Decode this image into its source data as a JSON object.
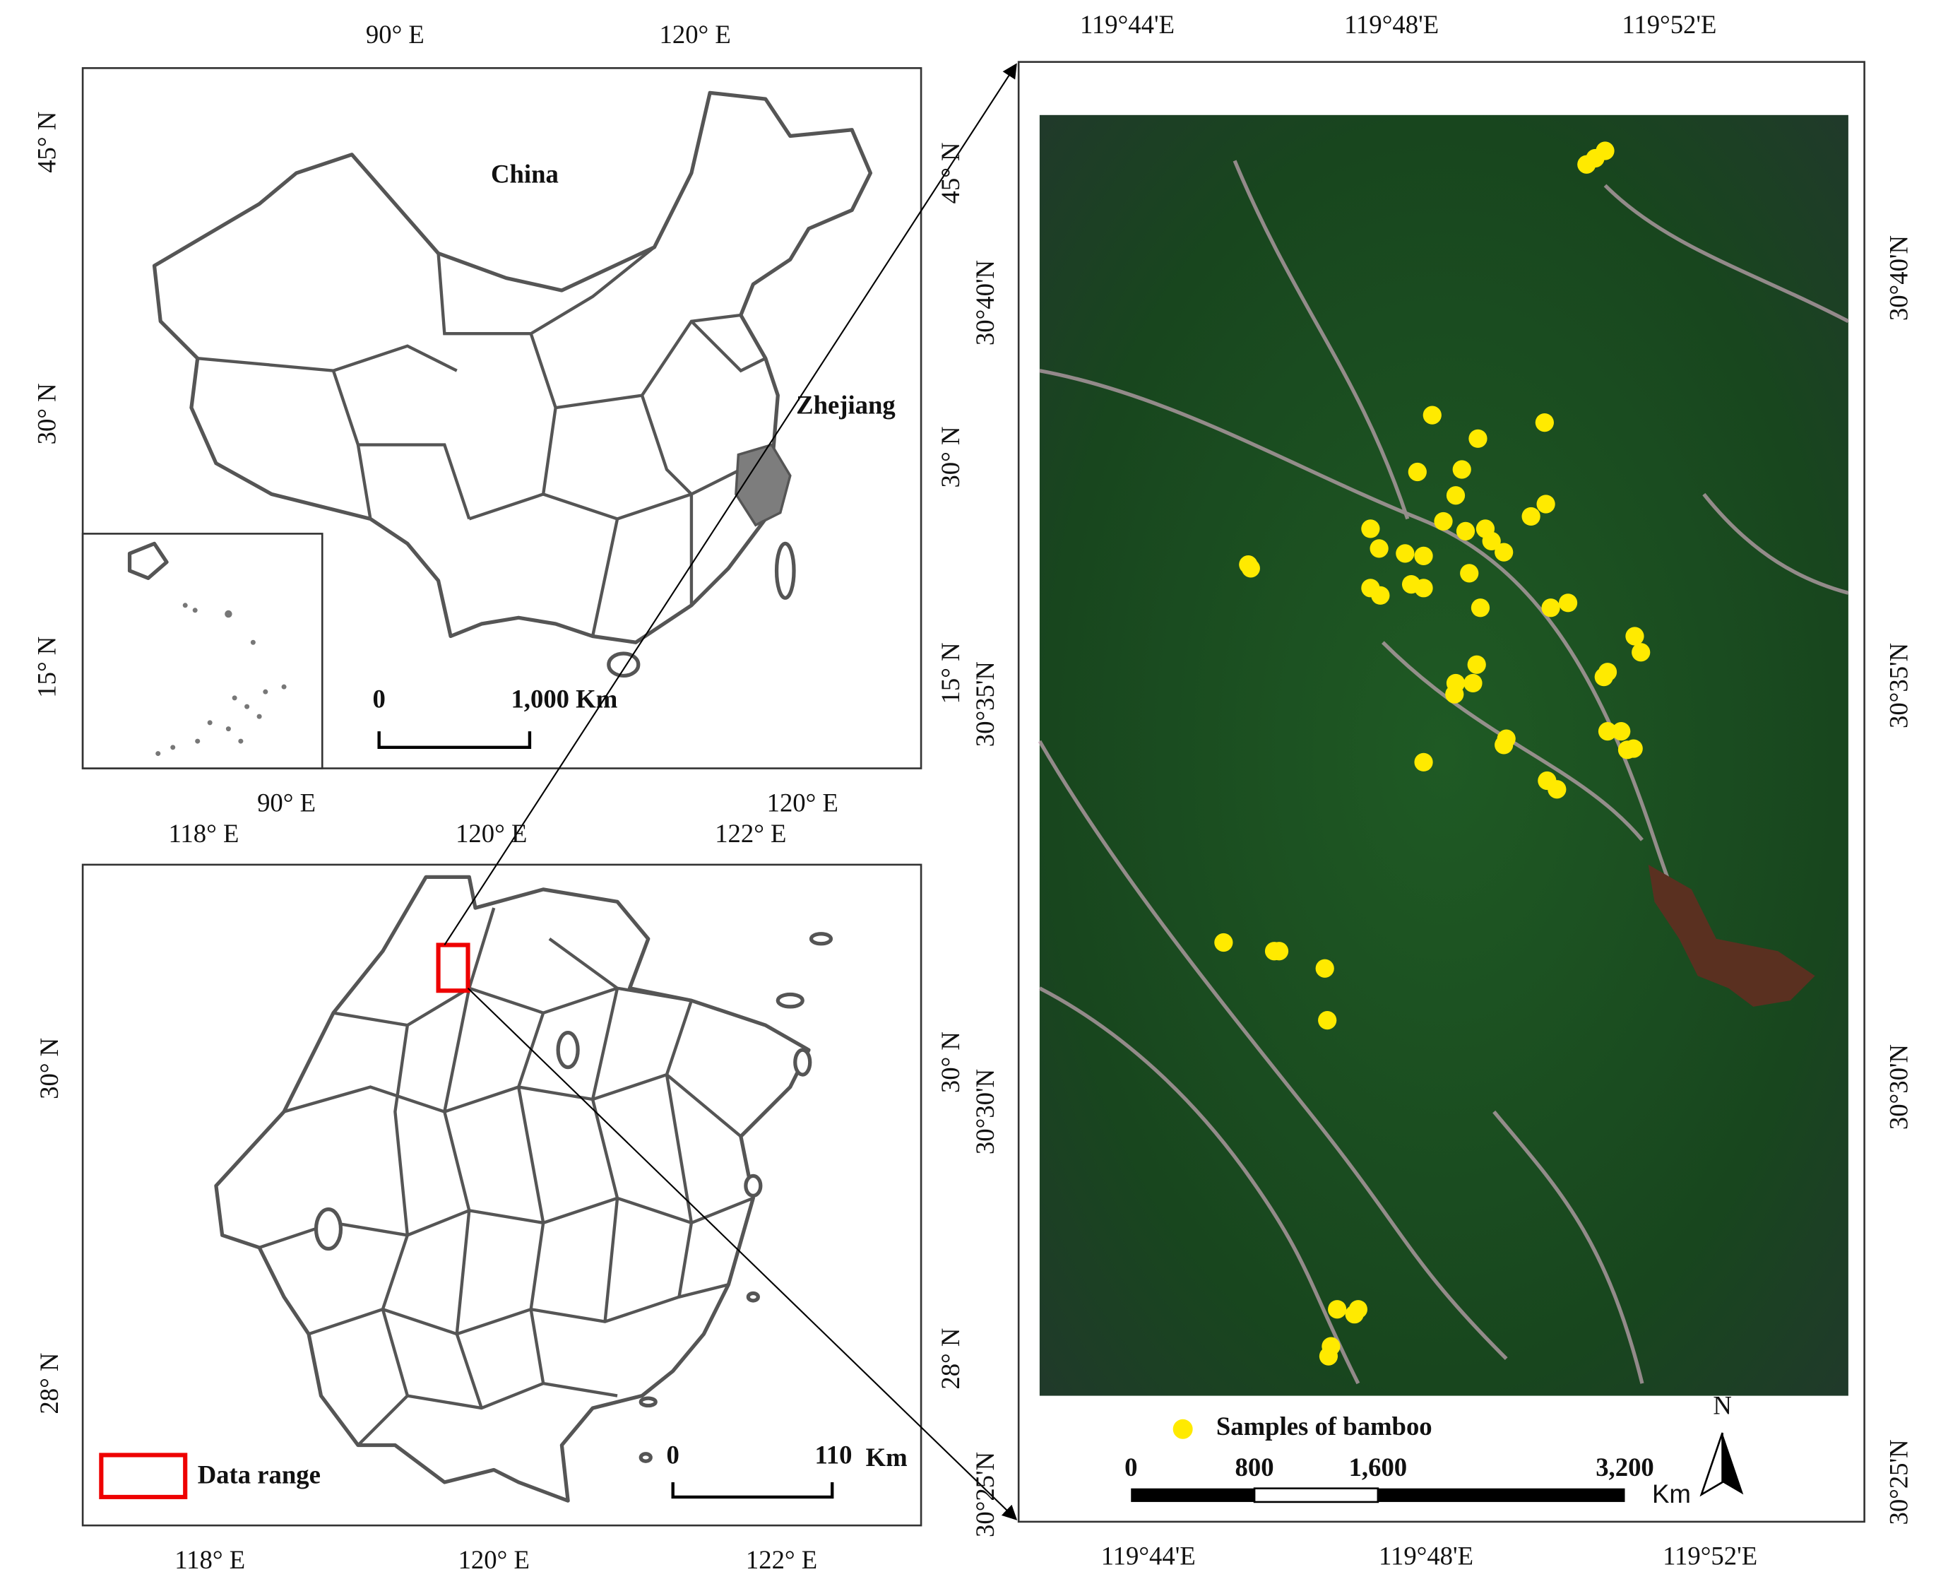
{
  "top_map": {
    "title": "China",
    "region_label": "Zhejiang",
    "top_ticks": [
      "90° E",
      "120° E"
    ],
    "bottom_ticks": [
      "90° E",
      "120° E"
    ],
    "left_ticks": [
      "45° N",
      "30° N",
      "15° N"
    ],
    "right_ticks": [
      "45° N",
      "30° N",
      "15° N"
    ],
    "scale_bar": {
      "start": "0",
      "end": "1,000 Km"
    }
  },
  "bottom_map": {
    "top_ticks": [
      "118° E",
      "120° E",
      "122° E"
    ],
    "bottom_ticks": [
      "118° E",
      "120° E",
      "122° E"
    ],
    "left_ticks": [
      "30° N",
      "28° N"
    ],
    "right_ticks": [
      "30° N",
      "28° N"
    ],
    "legend": "Data range",
    "scale_bar": {
      "start": "0",
      "end": "110",
      "unit": "Km"
    }
  },
  "right_map": {
    "top_ticks": [
      "119°44'E",
      "119°48'E",
      "119°52'E"
    ],
    "bottom_ticks": [
      "119°44'E",
      "119°48'E",
      "119°52'E"
    ],
    "left_ticks": [
      "30°40'N",
      "30°35'N",
      "30°30'N",
      "30°25'N"
    ],
    "right_ticks": [
      "30°40'N",
      "30°35'N",
      "30°30'N",
      "30°25'N"
    ],
    "legend": "Samples of bamboo",
    "scale_bar": {
      "labels": [
        "0",
        "800",
        "1,600",
        "3,200"
      ],
      "unit": "Km"
    },
    "north": "N"
  }
}
